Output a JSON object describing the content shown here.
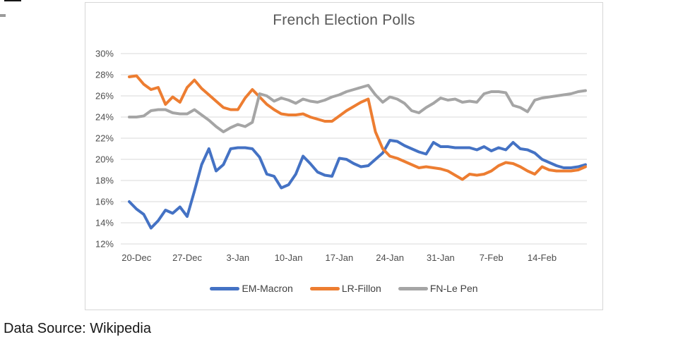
{
  "caption": "Data Source: Wikipedia",
  "chart_data": {
    "type": "line",
    "title": "French Election Polls",
    "ylim": [
      12,
      30
    ],
    "grid": true,
    "grid_color": "#d9d9d9",
    "legend_position": "bottom",
    "y_tick_labels": [
      "30%",
      "28%",
      "26%",
      "24%",
      "22%",
      "20%",
      "18%",
      "16%",
      "14%",
      "12%"
    ],
    "x_ticks": [
      {
        "index": 1,
        "label": "20-Dec"
      },
      {
        "index": 8,
        "label": "27-Dec"
      },
      {
        "index": 15,
        "label": "3-Jan"
      },
      {
        "index": 22,
        "label": "10-Jan"
      },
      {
        "index": 29,
        "label": "17-Jan"
      },
      {
        "index": 36,
        "label": "24-Jan"
      },
      {
        "index": 43,
        "label": "31-Jan"
      },
      {
        "index": 50,
        "label": "7-Feb"
      },
      {
        "index": 57,
        "label": "14-Feb"
      }
    ],
    "categories": [
      "19-Dec",
      "20-Dec",
      "21-Dec",
      "22-Dec",
      "23-Dec",
      "24-Dec",
      "25-Dec",
      "26-Dec",
      "27-Dec",
      "28-Dec",
      "29-Dec",
      "30-Dec",
      "31-Dec",
      "1-Jan",
      "2-Jan",
      "3-Jan",
      "4-Jan",
      "5-Jan",
      "6-Jan",
      "7-Jan",
      "8-Jan",
      "9-Jan",
      "10-Jan",
      "11-Jan",
      "12-Jan",
      "13-Jan",
      "14-Jan",
      "15-Jan",
      "16-Jan",
      "17-Jan",
      "18-Jan",
      "19-Jan",
      "20-Jan",
      "21-Jan",
      "22-Jan",
      "23-Jan",
      "24-Jan",
      "25-Jan",
      "26-Jan",
      "27-Jan",
      "28-Jan",
      "29-Jan",
      "30-Jan",
      "31-Jan",
      "1-Feb",
      "2-Feb",
      "3-Feb",
      "4-Feb",
      "5-Feb",
      "6-Feb",
      "7-Feb",
      "8-Feb",
      "9-Feb",
      "10-Feb",
      "11-Feb",
      "12-Feb",
      "13-Feb",
      "14-Feb",
      "15-Feb",
      "16-Feb",
      "17-Feb",
      "18-Feb",
      "19-Feb",
      "20-Feb"
    ],
    "series": [
      {
        "name": "EM-Macron",
        "color": "#4472C4",
        "values": [
          16.0,
          15.3,
          14.8,
          13.5,
          14.2,
          15.2,
          14.9,
          15.5,
          14.6,
          17.0,
          19.5,
          21.0,
          18.9,
          19.5,
          21.0,
          21.1,
          21.1,
          21.0,
          20.2,
          18.6,
          18.4,
          17.3,
          17.6,
          18.6,
          20.3,
          19.6,
          18.8,
          18.5,
          18.4,
          20.1,
          20.0,
          19.6,
          19.3,
          19.4,
          20.0,
          20.6,
          21.8,
          21.7,
          21.3,
          21.0,
          20.7,
          20.5,
          21.6,
          21.2,
          21.2,
          21.1,
          21.1,
          21.1,
          20.9,
          21.2,
          20.8,
          21.1,
          20.9,
          21.6,
          21.0,
          20.9,
          20.6,
          20.0,
          19.7,
          19.4,
          19.2,
          19.2,
          19.3,
          19.5
        ]
      },
      {
        "name": "LR-Fillon",
        "color": "#ED7D31",
        "values": [
          27.8,
          27.9,
          27.1,
          26.6,
          26.8,
          25.2,
          25.9,
          25.4,
          26.8,
          27.5,
          26.7,
          26.1,
          25.5,
          24.9,
          24.7,
          24.7,
          25.8,
          26.6,
          25.9,
          25.2,
          24.7,
          24.3,
          24.2,
          24.2,
          24.3,
          24.0,
          23.8,
          23.6,
          23.6,
          24.1,
          24.6,
          25.0,
          25.4,
          25.7,
          22.6,
          21.0,
          20.3,
          20.1,
          19.8,
          19.5,
          19.2,
          19.3,
          19.2,
          19.1,
          18.9,
          18.5,
          18.1,
          18.6,
          18.5,
          18.6,
          18.9,
          19.4,
          19.7,
          19.6,
          19.3,
          18.9,
          18.6,
          19.3,
          19.0,
          18.9,
          18.9,
          18.9,
          19.0,
          19.3
        ]
      },
      {
        "name": "FN-Le Pen",
        "color": "#A5A5A5",
        "values": [
          24.0,
          24.0,
          24.1,
          24.6,
          24.7,
          24.7,
          24.4,
          24.3,
          24.3,
          24.7,
          24.2,
          23.7,
          23.1,
          22.6,
          23.0,
          23.3,
          23.1,
          23.5,
          26.2,
          26.0,
          25.5,
          25.8,
          25.6,
          25.3,
          25.7,
          25.5,
          25.4,
          25.6,
          25.9,
          26.1,
          26.4,
          26.6,
          26.8,
          27.0,
          26.1,
          25.4,
          25.9,
          25.7,
          25.3,
          24.6,
          24.4,
          24.9,
          25.3,
          25.8,
          25.6,
          25.7,
          25.4,
          25.5,
          25.4,
          26.2,
          26.4,
          26.4,
          26.3,
          25.1,
          24.9,
          24.5,
          25.6,
          25.8,
          25.9,
          26.0,
          26.1,
          26.2,
          26.4,
          26.5
        ]
      }
    ]
  }
}
